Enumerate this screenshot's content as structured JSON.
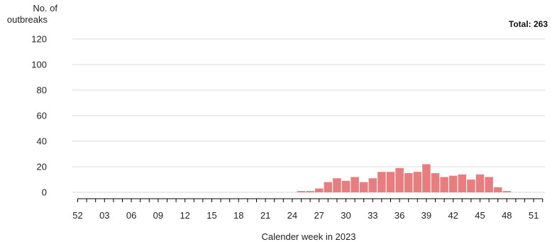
{
  "chart_data": {
    "type": "bar",
    "ylabel_lines": [
      "No. of",
      "outbreaks"
    ],
    "xlabel": "Calender week in 2023",
    "total_label": "Total: 263",
    "ylim": [
      0,
      120
    ],
    "yticks": [
      0,
      20,
      40,
      60,
      80,
      100,
      120
    ],
    "grid": true,
    "bar_color": "#e87d7f",
    "categories": [
      "52",
      "01",
      "02",
      "03",
      "04",
      "05",
      "06",
      "07",
      "08",
      "09",
      "10",
      "11",
      "12",
      "13",
      "14",
      "15",
      "16",
      "17",
      "18",
      "19",
      "20",
      "21",
      "22",
      "23",
      "24",
      "25",
      "26",
      "27",
      "28",
      "29",
      "30",
      "31",
      "32",
      "33",
      "34",
      "35",
      "36",
      "37",
      "38",
      "39",
      "40",
      "41",
      "42",
      "43",
      "44",
      "45",
      "46",
      "47",
      "48",
      "49",
      "50",
      "51",
      "52"
    ],
    "values": [
      0,
      0,
      0,
      0,
      0,
      0,
      0,
      0,
      0,
      0,
      0,
      0,
      0,
      0,
      0,
      0,
      0,
      0,
      0,
      0,
      0,
      0,
      0,
      0,
      0,
      1,
      1,
      3,
      8,
      11,
      9,
      12,
      8,
      11,
      16,
      16,
      19,
      15,
      16,
      22,
      15,
      12,
      13,
      14,
      10,
      14,
      12,
      4,
      1,
      0,
      0,
      0,
      0
    ],
    "xtick_labels": [
      {
        "index": 0,
        "label": "52"
      },
      {
        "index": 3,
        "label": "03"
      },
      {
        "index": 6,
        "label": "06"
      },
      {
        "index": 9,
        "label": "09"
      },
      {
        "index": 12,
        "label": "12"
      },
      {
        "index": 15,
        "label": "15"
      },
      {
        "index": 18,
        "label": "18"
      },
      {
        "index": 21,
        "label": "21"
      },
      {
        "index": 24,
        "label": "24"
      },
      {
        "index": 27,
        "label": "27"
      },
      {
        "index": 30,
        "label": "30"
      },
      {
        "index": 33,
        "label": "33"
      },
      {
        "index": 36,
        "label": "36"
      },
      {
        "index": 39,
        "label": "39"
      },
      {
        "index": 42,
        "label": "42"
      },
      {
        "index": 45,
        "label": "45"
      },
      {
        "index": 48,
        "label": "48"
      },
      {
        "index": 51,
        "label": "51"
      }
    ]
  }
}
